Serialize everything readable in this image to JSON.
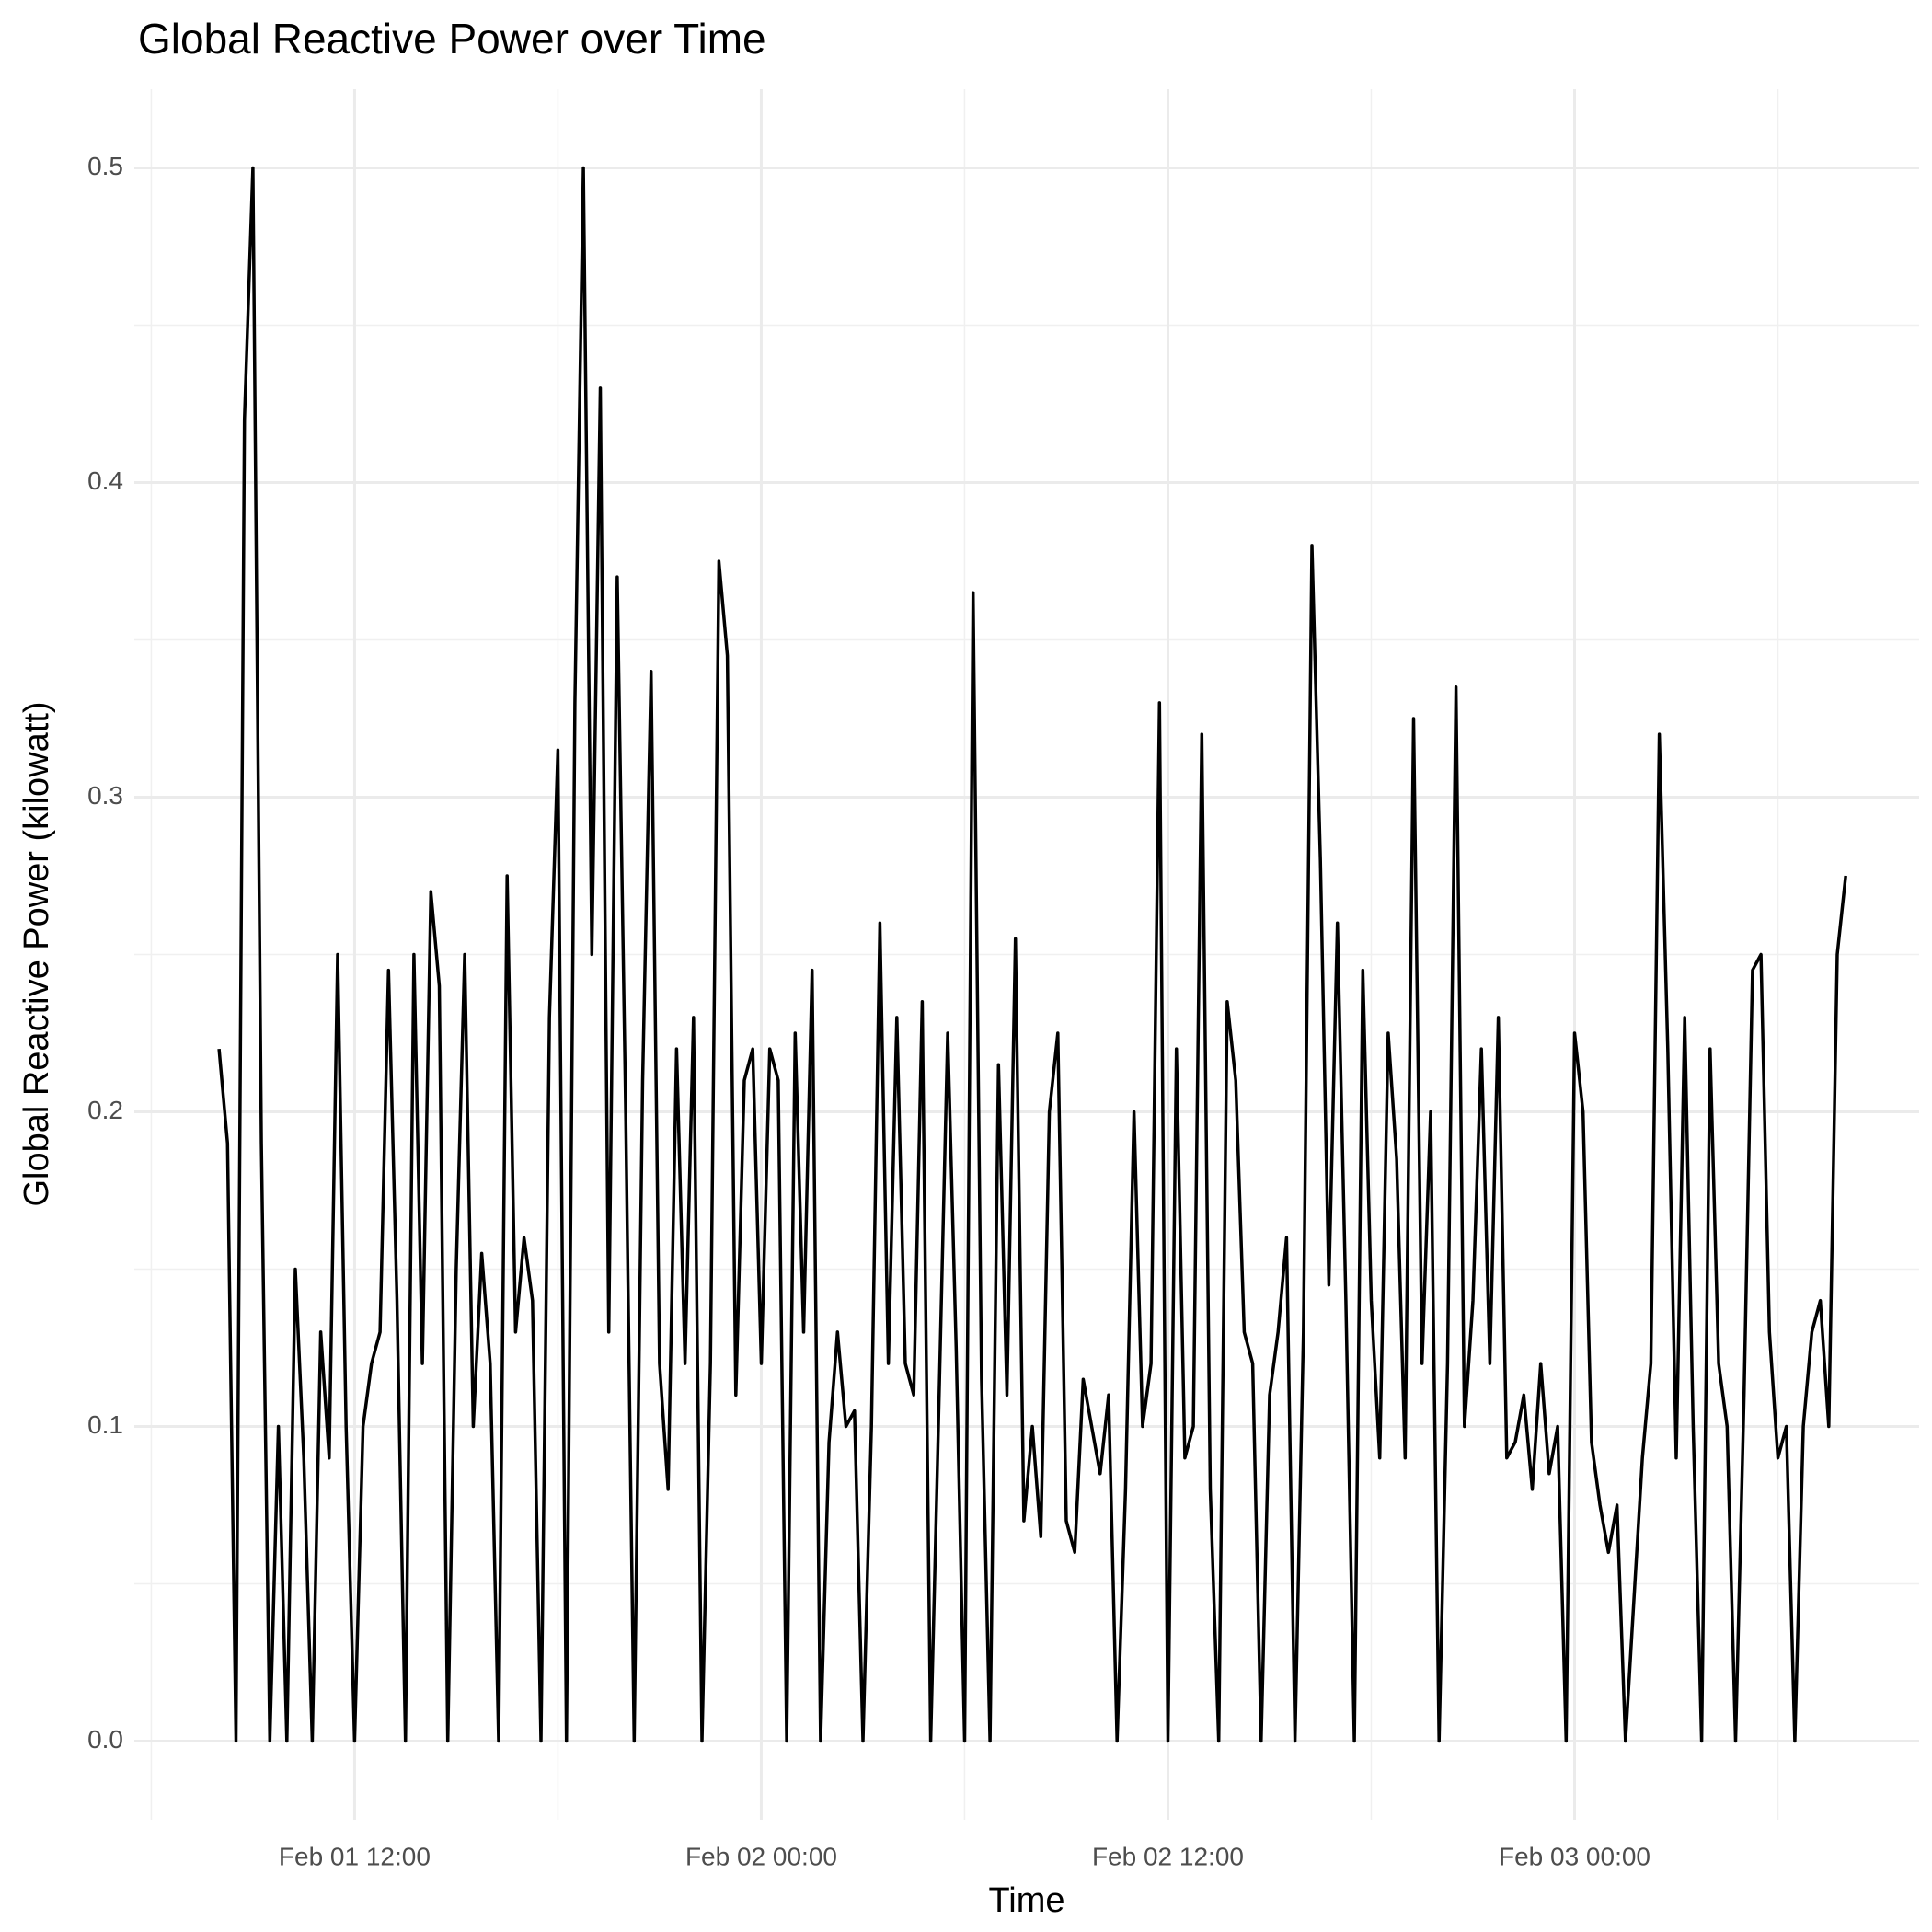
{
  "chart_data": {
    "type": "line",
    "title": "Global Reactive Power over Time",
    "x_label": "Time",
    "y_label": "Global Reactive Power (kilowatt)",
    "color": "#000000",
    "grid": true,
    "x": [
      "Feb 01 08:00",
      "Feb 01 08:15",
      "Feb 01 08:30",
      "Feb 01 08:45",
      "Feb 01 09:00",
      "Feb 01 09:15",
      "Feb 01 09:30",
      "Feb 01 09:45",
      "Feb 01 10:00",
      "Feb 01 10:15",
      "Feb 01 10:30",
      "Feb 01 10:45",
      "Feb 01 11:00",
      "Feb 01 11:15",
      "Feb 01 11:30",
      "Feb 01 11:45",
      "Feb 01 12:00",
      "Feb 01 12:15",
      "Feb 01 12:30",
      "Feb 01 12:45",
      "Feb 01 13:00",
      "Feb 01 13:15",
      "Feb 01 13:30",
      "Feb 01 13:45",
      "Feb 01 14:00",
      "Feb 01 14:15",
      "Feb 01 14:30",
      "Feb 01 14:45",
      "Feb 01 15:00",
      "Feb 01 15:15",
      "Feb 01 15:30",
      "Feb 01 15:45",
      "Feb 01 16:00",
      "Feb 01 16:15",
      "Feb 01 16:30",
      "Feb 01 16:45",
      "Feb 01 17:00",
      "Feb 01 17:15",
      "Feb 01 17:30",
      "Feb 01 17:45",
      "Feb 01 18:00",
      "Feb 01 18:15",
      "Feb 01 18:30",
      "Feb 01 18:45",
      "Feb 01 19:00",
      "Feb 01 19:15",
      "Feb 01 19:30",
      "Feb 01 19:45",
      "Feb 01 20:00",
      "Feb 01 20:15",
      "Feb 01 20:30",
      "Feb 01 20:45",
      "Feb 01 21:00",
      "Feb 01 21:15",
      "Feb 01 21:30",
      "Feb 01 21:45",
      "Feb 01 22:00",
      "Feb 01 22:15",
      "Feb 01 22:30",
      "Feb 01 22:45",
      "Feb 01 23:00",
      "Feb 01 23:15",
      "Feb 01 23:30",
      "Feb 01 23:45",
      "Feb 02 00:00",
      "Feb 02 00:15",
      "Feb 02 00:30",
      "Feb 02 00:45",
      "Feb 02 01:00",
      "Feb 02 01:15",
      "Feb 02 01:30",
      "Feb 02 01:45",
      "Feb 02 02:00",
      "Feb 02 02:15",
      "Feb 02 02:30",
      "Feb 02 02:45",
      "Feb 02 03:00",
      "Feb 02 03:15",
      "Feb 02 03:30",
      "Feb 02 03:45",
      "Feb 02 04:00",
      "Feb 02 04:15",
      "Feb 02 04:30",
      "Feb 02 04:45",
      "Feb 02 05:00",
      "Feb 02 05:15",
      "Feb 02 05:30",
      "Feb 02 05:45",
      "Feb 02 06:00",
      "Feb 02 06:15",
      "Feb 02 06:30",
      "Feb 02 06:45",
      "Feb 02 07:00",
      "Feb 02 07:15",
      "Feb 02 07:30",
      "Feb 02 07:45",
      "Feb 02 08:00",
      "Feb 02 08:15",
      "Feb 02 08:30",
      "Feb 02 08:45",
      "Feb 02 09:00",
      "Feb 02 09:15",
      "Feb 02 09:30",
      "Feb 02 09:45",
      "Feb 02 10:00",
      "Feb 02 10:15",
      "Feb 02 10:30",
      "Feb 02 10:45",
      "Feb 02 11:00",
      "Feb 02 11:15",
      "Feb 02 11:30",
      "Feb 02 11:45",
      "Feb 02 12:00",
      "Feb 02 12:15",
      "Feb 02 12:30",
      "Feb 02 12:45",
      "Feb 02 13:00",
      "Feb 02 13:15",
      "Feb 02 13:30",
      "Feb 02 13:45",
      "Feb 02 14:00",
      "Feb 02 14:15",
      "Feb 02 14:30",
      "Feb 02 14:45",
      "Feb 02 15:00",
      "Feb 02 15:15",
      "Feb 02 15:30",
      "Feb 02 15:45",
      "Feb 02 16:00",
      "Feb 02 16:15",
      "Feb 02 16:30",
      "Feb 02 16:45",
      "Feb 02 17:00",
      "Feb 02 17:15",
      "Feb 02 17:30",
      "Feb 02 17:45",
      "Feb 02 18:00",
      "Feb 02 18:15",
      "Feb 02 18:30",
      "Feb 02 18:45",
      "Feb 02 19:00",
      "Feb 02 19:15",
      "Feb 02 19:30",
      "Feb 02 19:45",
      "Feb 02 20:00",
      "Feb 02 20:15",
      "Feb 02 20:30",
      "Feb 02 20:45",
      "Feb 02 21:00",
      "Feb 02 21:15",
      "Feb 02 21:30",
      "Feb 02 21:45",
      "Feb 02 22:00",
      "Feb 02 22:15",
      "Feb 02 22:30",
      "Feb 02 22:45",
      "Feb 02 23:00",
      "Feb 02 23:15",
      "Feb 02 23:30",
      "Feb 02 23:45",
      "Feb 03 00:00",
      "Feb 03 00:15",
      "Feb 03 00:30",
      "Feb 03 00:45",
      "Feb 03 01:00",
      "Feb 03 01:15",
      "Feb 03 01:30",
      "Feb 03 01:45",
      "Feb 03 02:00",
      "Feb 03 02:15",
      "Feb 03 02:30",
      "Feb 03 02:45",
      "Feb 03 03:00",
      "Feb 03 03:15",
      "Feb 03 03:30",
      "Feb 03 03:45",
      "Feb 03 04:00",
      "Feb 03 04:15",
      "Feb 03 04:30",
      "Feb 03 04:45",
      "Feb 03 05:00",
      "Feb 03 05:15",
      "Feb 03 05:30",
      "Feb 03 05:45",
      "Feb 03 06:00",
      "Feb 03 06:15",
      "Feb 03 06:30",
      "Feb 03 06:45",
      "Feb 03 07:00",
      "Feb 03 07:15",
      "Feb 03 07:30",
      "Feb 03 07:45",
      "Feb 03 08:00"
    ],
    "values": [
      0.22,
      0.19,
      0,
      0.42,
      0.5,
      0.19,
      0,
      0.1,
      0,
      0.15,
      0.09,
      0,
      0.13,
      0.09,
      0.25,
      0.1,
      0,
      0.1,
      0.12,
      0.13,
      0.245,
      0.14,
      0,
      0.25,
      0.12,
      0.27,
      0.24,
      0,
      0.15,
      0.25,
      0.1,
      0.155,
      0.12,
      0,
      0.275,
      0.13,
      0.16,
      0.14,
      0,
      0.23,
      0.315,
      0,
      0.33,
      0.5,
      0.25,
      0.43,
      0.13,
      0.37,
      0.2,
      0,
      0.21,
      0.34,
      0.12,
      0.08,
      0.22,
      0.12,
      0.23,
      0,
      0.12,
      0.375,
      0.345,
      0.11,
      0.21,
      0.22,
      0.12,
      0.22,
      0.21,
      0,
      0.225,
      0.13,
      0.245,
      0,
      0.095,
      0.13,
      0.1,
      0.105,
      0,
      0.1,
      0.26,
      0.12,
      0.23,
      0.12,
      0.11,
      0.235,
      0,
      0.11,
      0.225,
      0.125,
      0,
      0.365,
      0.115,
      0,
      0.215,
      0.11,
      0.255,
      0.07,
      0.1,
      0.065,
      0.2,
      0.225,
      0.07,
      0.06,
      0.115,
      0.1,
      0.085,
      0.11,
      0,
      0.08,
      0.2,
      0.1,
      0.12,
      0.33,
      0,
      0.22,
      0.09,
      0.1,
      0.32,
      0.08,
      0,
      0.235,
      0.21,
      0.13,
      0.12,
      0,
      0.11,
      0.13,
      0.16,
      0,
      0.13,
      0.38,
      0.28,
      0.145,
      0.26,
      0.14,
      0,
      0.245,
      0.14,
      0.09,
      0.225,
      0.185,
      0.09,
      0.325,
      0.12,
      0.2,
      0,
      0.12,
      0.335,
      0.1,
      0.14,
      0.22,
      0.12,
      0.23,
      0.09,
      0.095,
      0.11,
      0.08,
      0.12,
      0.085,
      0.1,
      0,
      0.225,
      0.2,
      0.095,
      0.075,
      0.06,
      0.075,
      0,
      0.045,
      0.09,
      0.12,
      0.32,
      0.22,
      0.09,
      0.23,
      0.1,
      0,
      0.22,
      0.12,
      0.1,
      0,
      0.11,
      0.245,
      0.25,
      0.13,
      0.09,
      0.1,
      0,
      0.1,
      0.13,
      0.14,
      0.1,
      0.25,
      0.275
    ],
    "xlim": [
      "Feb 01 05:30",
      "Feb 03 10:10"
    ],
    "xticks": [
      "Feb 01 12:00",
      "Feb 02 00:00",
      "Feb 02 12:00",
      "Feb 03 00:00"
    ],
    "ylim": [
      -0.025,
      0.525
    ],
    "yticks": [
      {
        "value": 0,
        "label": "0.0"
      },
      0.1,
      0.2,
      0.3,
      0.4,
      0.5
    ]
  }
}
